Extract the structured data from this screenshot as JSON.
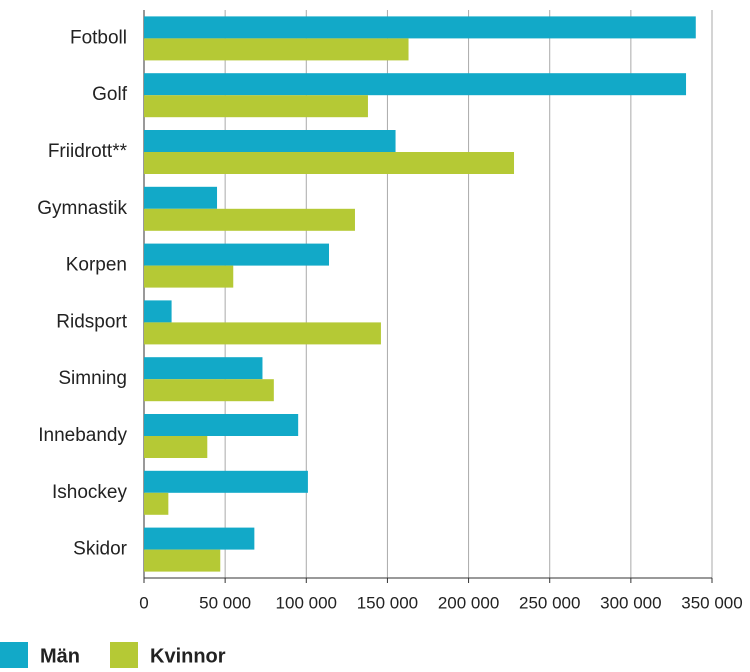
{
  "chart_data": {
    "type": "barh",
    "categories": [
      "Fotboll",
      "Golf",
      "Friidrott**",
      "Gymnastik",
      "Korpen",
      "Ridsport",
      "Simning",
      "Innebandy",
      "Ishockey",
      "Skidor"
    ],
    "series": [
      {
        "name": "Män",
        "color": "#12a9c8",
        "values": [
          340000,
          334000,
          155000,
          45000,
          114000,
          17000,
          73000,
          95000,
          101000,
          68000
        ]
      },
      {
        "name": "Kvinnor",
        "color": "#b5c935",
        "values": [
          163000,
          138000,
          228000,
          130000,
          55000,
          146000,
          80000,
          39000,
          15000,
          47000
        ]
      }
    ],
    "xlim": [
      0,
      350000
    ],
    "xticks": [
      0,
      {
        "value": 50000,
        "label": "50 000"
      },
      {
        "value": 100000,
        "label": "100 000"
      },
      {
        "value": 150000,
        "label": "150 000"
      },
      {
        "value": 200000,
        "label": "200 000"
      },
      {
        "value": 250000,
        "label": "250 000"
      },
      {
        "value": 300000,
        "label": "300 000"
      },
      {
        "value": 350000,
        "label": "350 000"
      }
    ],
    "grid": true,
    "legend": "bottom"
  }
}
